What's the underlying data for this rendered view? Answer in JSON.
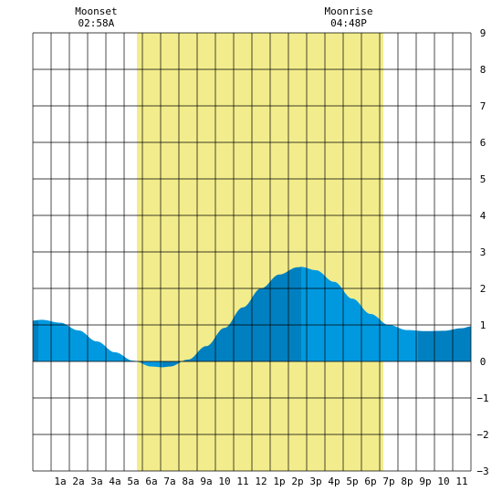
{
  "chart_data": {
    "type": "area",
    "x_unit": "hour of day",
    "xlim": [
      -0.5,
      23.5
    ],
    "ylim": [
      -3,
      9
    ],
    "y_ticks": [
      "9",
      "8",
      "7",
      "6",
      "5",
      "4",
      "3",
      "2",
      "1",
      "0",
      "−1",
      "−2",
      "−3"
    ],
    "x_ticks": [
      "1a",
      "2a",
      "3a",
      "4a",
      "5a",
      "6a",
      "7a",
      "8a",
      "9a",
      "10",
      "11",
      "12",
      "1p",
      "2p",
      "3p",
      "4p",
      "5p",
      "6p",
      "7p",
      "8p",
      "9p",
      "10",
      "11"
    ],
    "daylight": [
      5.2,
      18.7
    ],
    "annotations": [
      {
        "label": "Moonset",
        "time": "02:58A",
        "hour": 2.97
      },
      {
        "label": "Moonrise",
        "time": "04:48P",
        "hour": 16.8
      }
    ],
    "tide_series": {
      "x": [
        -0.5,
        0,
        1,
        2,
        3,
        4,
        5,
        6,
        6.6,
        7,
        8,
        9,
        10,
        11,
        12,
        13,
        14,
        14.2,
        15,
        16,
        17,
        18,
        19,
        20,
        21,
        22,
        23,
        23.5
      ],
      "y": [
        1.12,
        1.14,
        1.06,
        0.85,
        0.55,
        0.25,
        0.02,
        -0.14,
        -0.16,
        -0.14,
        0.05,
        0.42,
        0.92,
        1.48,
        2.0,
        2.38,
        2.58,
        2.59,
        2.5,
        2.18,
        1.72,
        1.3,
        1.0,
        0.86,
        0.83,
        0.84,
        0.91,
        0.96
      ]
    },
    "shade_turning_points": [
      -0.2,
      6.6,
      14.2,
      20.6
    ],
    "colors": {
      "grid": "#000000",
      "daylight": "#f2ec8c",
      "tide_light": "#0099e0",
      "tide_dark": "#0080c0"
    }
  }
}
